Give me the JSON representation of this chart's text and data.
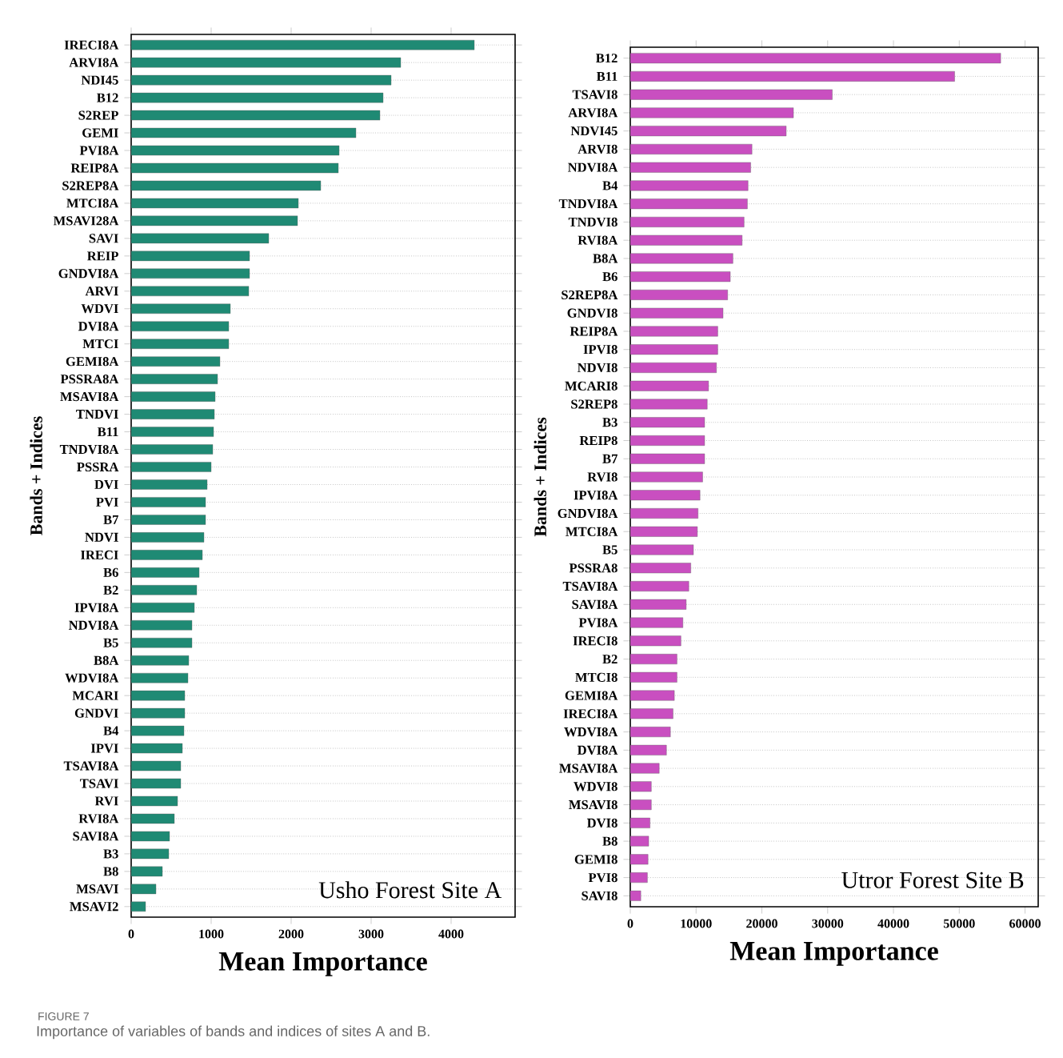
{
  "chart_data": [
    {
      "type": "bar",
      "orientation": "horizontal",
      "ylabel": "Bands + Indices",
      "xlabel": "Mean Importance",
      "color": "#1f8a74",
      "grid": "y",
      "xlim": [
        0,
        4800
      ],
      "xticks": [
        0,
        1000,
        2000,
        3000,
        4000
      ],
      "annotations": [
        "Usho Forest Site A"
      ],
      "categories": [
        "IRECI8A",
        "ARVI8A",
        "NDI45",
        "B12",
        "S2REP",
        "GEMI",
        "PVI8A",
        "REIP8A",
        "S2REP8A",
        "MTCI8A",
        "MSAVI28A",
        "SAVI",
        "REIP",
        "GNDVI8A",
        "ARVI",
        "WDVI",
        "DVI8A",
        "MTCI",
        "GEMI8A",
        "PSSRA8A",
        "MSAVI8A",
        "TNDVI",
        "B11",
        "TNDVI8A",
        "PSSRA",
        "DVI",
        "PVI",
        "B7",
        "NDVI",
        "IRECI",
        "B6",
        "B2",
        "IPVI8A",
        "NDVI8A",
        "B5",
        "B8A",
        "WDVI8A",
        "MCARI",
        "GNDVI",
        "B4",
        "IPVI",
        "TSAVI8A",
        "TSAVI",
        "RVI",
        "RVI8A",
        "SAVI8A",
        "B3",
        "B8",
        "MSAVI",
        "MSAVI2"
      ],
      "values": [
        4290,
        3370,
        3250,
        3150,
        3110,
        2810,
        2600,
        2590,
        2370,
        2090,
        2080,
        1720,
        1480,
        1480,
        1470,
        1240,
        1220,
        1220,
        1110,
        1080,
        1050,
        1040,
        1030,
        1020,
        1000,
        950,
        930,
        930,
        910,
        890,
        850,
        820,
        790,
        760,
        760,
        720,
        710,
        670,
        670,
        660,
        640,
        620,
        620,
        580,
        540,
        480,
        470,
        390,
        310,
        180
      ]
    },
    {
      "type": "bar",
      "orientation": "horizontal",
      "ylabel": "Bands + Indices",
      "xlabel": "Mean Importance",
      "color": "#c94fc0",
      "grid": "y",
      "xlim": [
        0,
        62000
      ],
      "xticks": [
        0,
        10000,
        20000,
        30000,
        40000,
        50000,
        60000
      ],
      "annotations": [
        "Utror Forest Site B"
      ],
      "categories": [
        "B12",
        "B11",
        "TSAVI8",
        "ARVI8A",
        "NDVI45",
        "ARVI8",
        "NDVI8A",
        "B4",
        "TNDVI8A",
        "TNDVI8",
        "RVI8A",
        "B8A",
        "B6",
        "S2REP8A",
        "GNDVI8",
        "REIP8A",
        "IPVI8",
        "NDVI8",
        "MCARI8",
        "S2REP8",
        "B3",
        "REIP8",
        "B7",
        "RVI8",
        "IPVI8A",
        "GNDVI8A",
        "MTCI8A",
        "B5",
        "PSSRA8",
        "TSAVI8A",
        "SAVI8A",
        "PVI8A",
        "IRECI8",
        "B2",
        "MTCI8",
        "GEMI8A",
        "IRECI8A",
        "WDVI8A",
        "DVI8A",
        "MSAVI8A",
        "WDVI8",
        "MSAVI8",
        "DVI8",
        "B8",
        "GEMI8",
        "PVI8",
        "SAVI8"
      ],
      "values": [
        56300,
        49300,
        30700,
        24800,
        23700,
        18500,
        18300,
        17900,
        17800,
        17300,
        17000,
        15600,
        15200,
        14800,
        14100,
        13300,
        13300,
        13100,
        11900,
        11700,
        11300,
        11300,
        11300,
        11000,
        10600,
        10300,
        10200,
        9600,
        9200,
        8900,
        8500,
        8000,
        7700,
        7100,
        7100,
        6700,
        6500,
        6100,
        5500,
        4400,
        3200,
        3200,
        3000,
        2800,
        2700,
        2600,
        1600
      ]
    },
    {
      "type": "other",
      "title": "FIGURE 7",
      "subtitle": "Importance of variables of bands and indices of sites A and B."
    }
  ]
}
